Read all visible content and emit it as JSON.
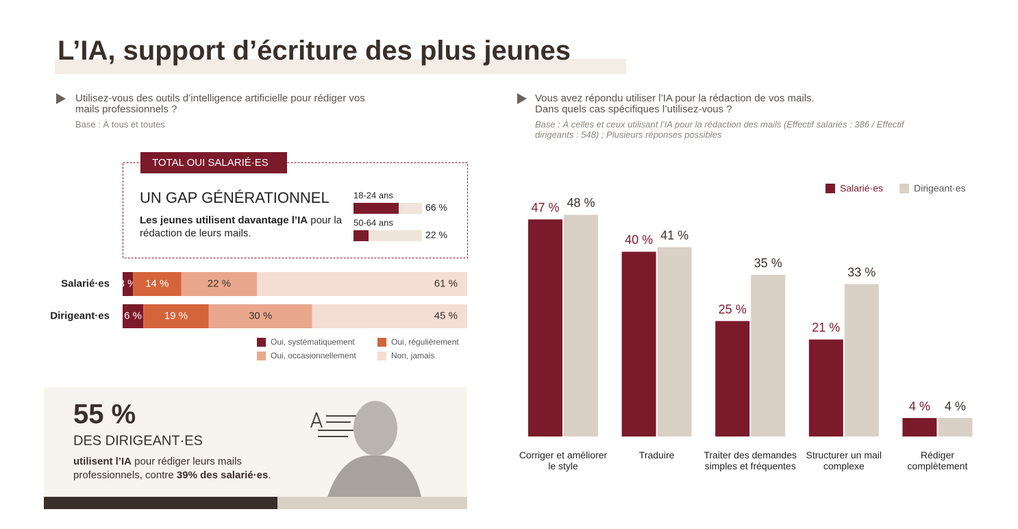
{
  "title": "L’IA, support d’écriture des plus jeunes",
  "chart_data": [
    {
      "type": "stacked-bar",
      "question": "Utilisez-vous des outils d’intelligence artificielle pour rédiger vos mails professionnels ?",
      "base": "Base : À tous et toutes",
      "categories": [
        "Salarié·es",
        "Dirigeant·es"
      ],
      "xlim": [
        0,
        100
      ],
      "series": [
        {
          "name": "Oui, systématiquement",
          "color": "#7b1a2b",
          "values": [
            3,
            6
          ],
          "value_labels": [
            "3 %",
            "6 %"
          ]
        },
        {
          "name": "Oui, régulièrement",
          "color": "#d4653a",
          "values": [
            14,
            19
          ],
          "value_labels": [
            "14 %",
            "19 %"
          ]
        },
        {
          "name": "Oui, occasionnellement",
          "color": "#e9a88d",
          "values": [
            22,
            30
          ],
          "value_labels": [
            "22 %",
            "30 %"
          ]
        },
        {
          "name": "Non, jamais",
          "color": "#f4ddd3",
          "values": [
            61,
            45
          ],
          "value_labels": [
            "61 %",
            "45 %"
          ]
        }
      ]
    },
    {
      "type": "mini-bar",
      "badge": "TOTAL OUI SALARIÉ·ES",
      "heading": "UN GAP GÉNÉRATIONNEL",
      "text_parts": [
        {
          "text": "Les jeunes utilisent davantage l’IA",
          "bold": true
        },
        {
          "text": " pour la rédaction de leurs mails.",
          "bold": false
        }
      ],
      "categories": [
        "18-24 ans",
        "50-64 ans"
      ],
      "values": [
        66,
        22
      ],
      "value_labels": [
        "66 %",
        "22 %"
      ],
      "xlim": [
        0,
        100
      ],
      "color": "#7b1a2b",
      "track_color": "#efe5da"
    },
    {
      "type": "bar",
      "question": [
        "Vous avez répondu utiliser l’IA pour la rédaction de vos mails.",
        "Dans quels cas spécifiques l’utilisez-vous ?"
      ],
      "base": "Base : À celles et ceux utilisant l’IA pour la rédaction des mails (Effectif salariés : 386 / Effectif dirigeants : 548) ; Plusieurs réponses possibles",
      "categories": [
        "Corriger et améliorer le style",
        "Traduire",
        "Traiter des demandes simples et fréquentes",
        "Structurer un mail complexe",
        "Rédiger complètement"
      ],
      "ylim": [
        0,
        50
      ],
      "legend": "top-right",
      "series": [
        {
          "name": "Salarié·es",
          "color": "#7b1a2b",
          "values": [
            47,
            40,
            25,
            21,
            4
          ],
          "value_labels": [
            "47 %",
            "40 %",
            "25 %",
            "21 %",
            "4 %"
          ]
        },
        {
          "name": "Dirigeant·es",
          "color": "#d9d0c6",
          "values": [
            48,
            41,
            35,
            33,
            4
          ],
          "value_labels": [
            "48 %",
            "41 %",
            "35 %",
            "33 %",
            "4 %"
          ]
        }
      ]
    }
  ],
  "callout": {
    "value_label": "55 %",
    "heading": "DES DIRIGEANT·ES",
    "text_parts": [
      {
        "text": "utilisent l’IA",
        "bold": true
      },
      {
        "text": " pour rédiger leurs mails professionnels, contre ",
        "bold": false
      },
      {
        "text": "39% des salarié·es",
        "bold": true
      },
      {
        "text": ".",
        "bold": false
      }
    ]
  }
}
